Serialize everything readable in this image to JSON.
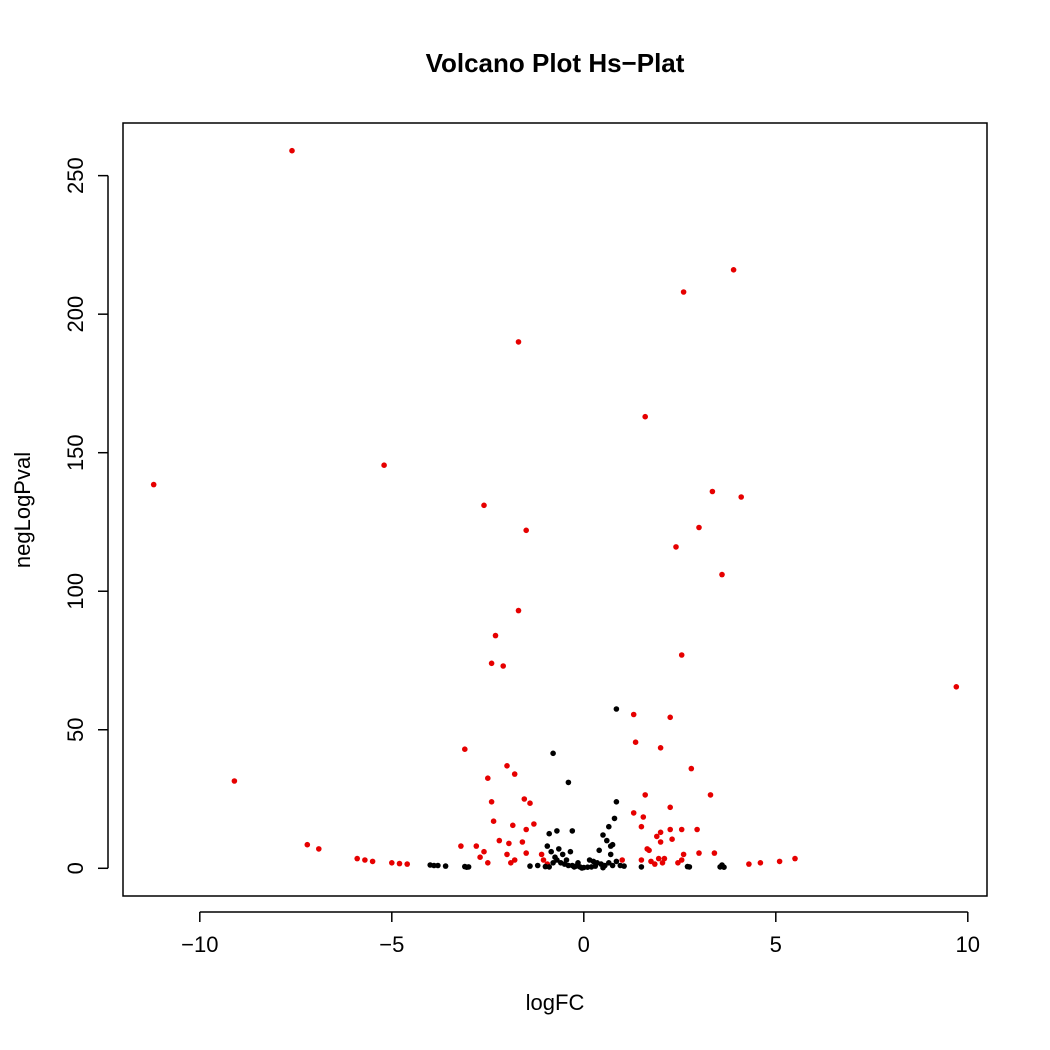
{
  "chart_data": {
    "type": "scatter",
    "title": "Volcano Plot Hs−Plat",
    "xlabel": "logFC",
    "ylabel": "negLogPval",
    "xlim": [
      -12.0,
      10.5
    ],
    "ylim": [
      -10,
      269
    ],
    "x_ticks": [
      -10,
      -5,
      0,
      5,
      10
    ],
    "x_tick_labels": [
      "−10",
      "−5",
      "0",
      "5",
      "10"
    ],
    "y_ticks": [
      0,
      50,
      100,
      150,
      200,
      250
    ],
    "y_tick_labels": [
      "0",
      "50",
      "100",
      "150",
      "200",
      "250"
    ],
    "grid": false,
    "colors": {
      "significant": "#e60000",
      "nonsignificant": "#000000",
      "frame": "#000000"
    },
    "series": [
      {
        "color": "#e60000",
        "points": [
          [
            -7.6,
            259
          ],
          [
            -11.2,
            138.5
          ],
          [
            -5.2,
            145.5
          ],
          [
            -9.1,
            31.5
          ],
          [
            -7.2,
            8.5
          ],
          [
            -6.9,
            7
          ],
          [
            -5.9,
            3.5
          ],
          [
            -5.7,
            3
          ],
          [
            -5.5,
            2.5
          ],
          [
            -5.0,
            2
          ],
          [
            -4.8,
            1.7
          ],
          [
            -4.6,
            1.5
          ],
          [
            -2.6,
            131
          ],
          [
            -1.5,
            122
          ],
          [
            -1.7,
            190
          ],
          [
            -1.7,
            93
          ],
          [
            -2.3,
            84
          ],
          [
            -2.4,
            74
          ],
          [
            -2.1,
            73
          ],
          [
            -3.1,
            43
          ],
          [
            -2.0,
            37
          ],
          [
            -1.8,
            34
          ],
          [
            -2.5,
            32.5
          ],
          [
            -1.55,
            25
          ],
          [
            -1.4,
            23.5
          ],
          [
            -2.4,
            24
          ],
          [
            -2.35,
            17
          ],
          [
            -1.85,
            15.5
          ],
          [
            -1.5,
            14
          ],
          [
            -1.3,
            16
          ],
          [
            -2.2,
            10
          ],
          [
            -1.95,
            9
          ],
          [
            -1.6,
            9.5
          ],
          [
            -1.1,
            5
          ],
          [
            -1.5,
            5.5
          ],
          [
            -3.2,
            8
          ],
          [
            -2.8,
            8
          ],
          [
            -2.6,
            6
          ],
          [
            -2.7,
            4
          ],
          [
            -2.0,
            5
          ],
          [
            -1.8,
            3
          ],
          [
            -1.9,
            2
          ],
          [
            -2.5,
            2
          ],
          [
            -1.05,
            3
          ],
          [
            -0.95,
            1.5
          ],
          [
            1.6,
            163
          ],
          [
            2.6,
            208
          ],
          [
            3.9,
            216
          ],
          [
            3.0,
            123
          ],
          [
            2.4,
            116
          ],
          [
            3.6,
            106
          ],
          [
            3.35,
            136
          ],
          [
            4.1,
            134
          ],
          [
            2.55,
            77
          ],
          [
            9.7,
            65.5
          ],
          [
            1.3,
            55.5
          ],
          [
            2.25,
            54.5
          ],
          [
            1.35,
            45.5
          ],
          [
            2.0,
            43.5
          ],
          [
            2.8,
            36
          ],
          [
            3.3,
            26.5
          ],
          [
            1.6,
            26.5
          ],
          [
            2.25,
            22
          ],
          [
            1.3,
            20
          ],
          [
            1.55,
            18.5
          ],
          [
            2.0,
            13
          ],
          [
            2.25,
            14
          ],
          [
            2.55,
            14
          ],
          [
            2.95,
            14
          ],
          [
            1.5,
            15
          ],
          [
            1.9,
            11.5
          ],
          [
            2.3,
            10.5
          ],
          [
            2.0,
            9.5
          ],
          [
            1.65,
            7
          ],
          [
            1.7,
            6.5
          ],
          [
            2.6,
            5
          ],
          [
            3.0,
            5.5
          ],
          [
            3.4,
            5.5
          ],
          [
            1.0,
            3
          ],
          [
            1.5,
            3
          ],
          [
            1.75,
            2.5
          ],
          [
            1.95,
            3.5
          ],
          [
            2.1,
            3.5
          ],
          [
            2.05,
            2
          ],
          [
            2.45,
            2
          ],
          [
            1.85,
            1.5
          ],
          [
            2.55,
            3
          ],
          [
            4.3,
            1.5
          ],
          [
            4.6,
            2
          ],
          [
            5.1,
            2.5
          ],
          [
            5.5,
            3.5
          ]
        ]
      },
      {
        "color": "#000000",
        "points": [
          [
            0.85,
            57.5
          ],
          [
            -0.8,
            41.5
          ],
          [
            -0.4,
            31
          ],
          [
            0.85,
            24
          ],
          [
            0.8,
            18
          ],
          [
            0.65,
            15
          ],
          [
            0.5,
            12
          ],
          [
            0.6,
            10
          ],
          [
            0.4,
            6.5
          ],
          [
            0.7,
            8
          ],
          [
            0.75,
            8.5
          ],
          [
            0.7,
            5
          ],
          [
            -0.9,
            12.5
          ],
          [
            -0.7,
            13.5
          ],
          [
            -0.3,
            13.5
          ],
          [
            -0.95,
            8
          ],
          [
            -0.85,
            6
          ],
          [
            -0.75,
            4
          ],
          [
            -0.65,
            7
          ],
          [
            -0.55,
            5
          ],
          [
            -0.45,
            3
          ],
          [
            -0.35,
            6
          ],
          [
            -0.8,
            2
          ],
          [
            -0.7,
            3
          ],
          [
            -0.6,
            2
          ],
          [
            -0.5,
            1.5
          ],
          [
            -0.4,
            1
          ],
          [
            -0.3,
            1
          ],
          [
            -0.2,
            0.8
          ],
          [
            -0.1,
            0.5
          ],
          [
            0.0,
            0.3
          ],
          [
            0.1,
            0.4
          ],
          [
            0.2,
            0.5
          ],
          [
            0.3,
            0.8
          ],
          [
            0.35,
            2
          ],
          [
            0.45,
            1.5
          ],
          [
            0.55,
            1
          ],
          [
            0.65,
            2
          ],
          [
            0.75,
            1
          ],
          [
            0.85,
            2.5
          ],
          [
            0.95,
            1
          ],
          [
            1.05,
            0.8
          ],
          [
            0.15,
            3
          ],
          [
            0.25,
            2.5
          ],
          [
            -0.15,
            2
          ],
          [
            -0.25,
            0.5
          ],
          [
            -1.2,
            1
          ],
          [
            -1.4,
            0.8
          ],
          [
            -1.0,
            0.6
          ],
          [
            -0.9,
            0.5
          ],
          [
            -4.0,
            1.2
          ],
          [
            -3.9,
            1.0
          ],
          [
            -3.8,
            1.0
          ],
          [
            -3.6,
            0.8
          ],
          [
            -3.1,
            0.6
          ],
          [
            -3.05,
            0.4
          ],
          [
            -3.0,
            0.5
          ],
          [
            1.5,
            0.5
          ],
          [
            2.7,
            0.6
          ],
          [
            2.75,
            0.5
          ],
          [
            3.55,
            0.5
          ],
          [
            3.6,
            0.8
          ],
          [
            3.65,
            0.4
          ],
          [
            3.6,
            1.2
          ],
          [
            0.5,
            0.2
          ],
          [
            -0.05,
            0.1
          ]
        ]
      }
    ]
  }
}
